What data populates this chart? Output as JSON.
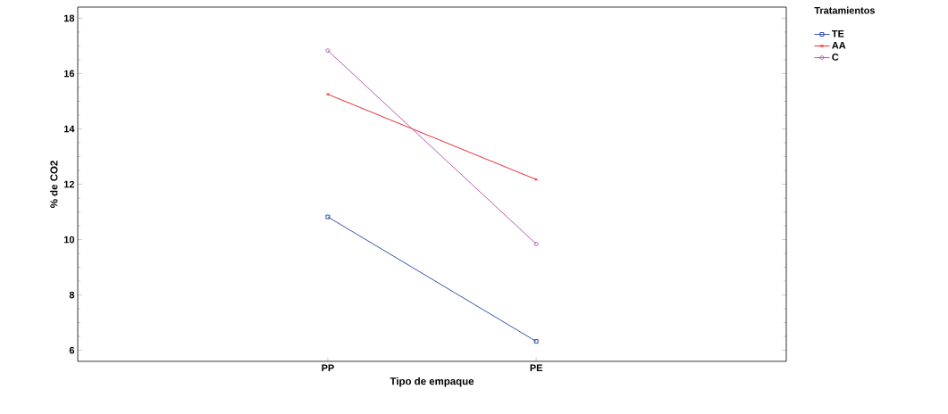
{
  "chart_data": {
    "type": "line",
    "xlabel": "Tipo de empaque",
    "ylabel": "% de CO2",
    "legend_title": "Tratamientos",
    "categories": [
      "PP",
      "PE"
    ],
    "series": [
      {
        "name": "TE",
        "color": "#1f3f9f",
        "values": [
          10.82,
          6.32
        ],
        "marker": "square"
      },
      {
        "name": "AA",
        "color": "#e8141c",
        "values": [
          15.25,
          12.17
        ],
        "marker": "cross"
      },
      {
        "name": "C",
        "color": "#b04aa8",
        "values": [
          16.83,
          9.84
        ],
        "marker": "circle"
      }
    ],
    "ylim": [
      5.6,
      18.4
    ],
    "yticks": [
      6,
      8,
      10,
      12,
      14,
      16,
      18
    ],
    "grid": false,
    "legend": "top right",
    "line_style": "solid"
  }
}
